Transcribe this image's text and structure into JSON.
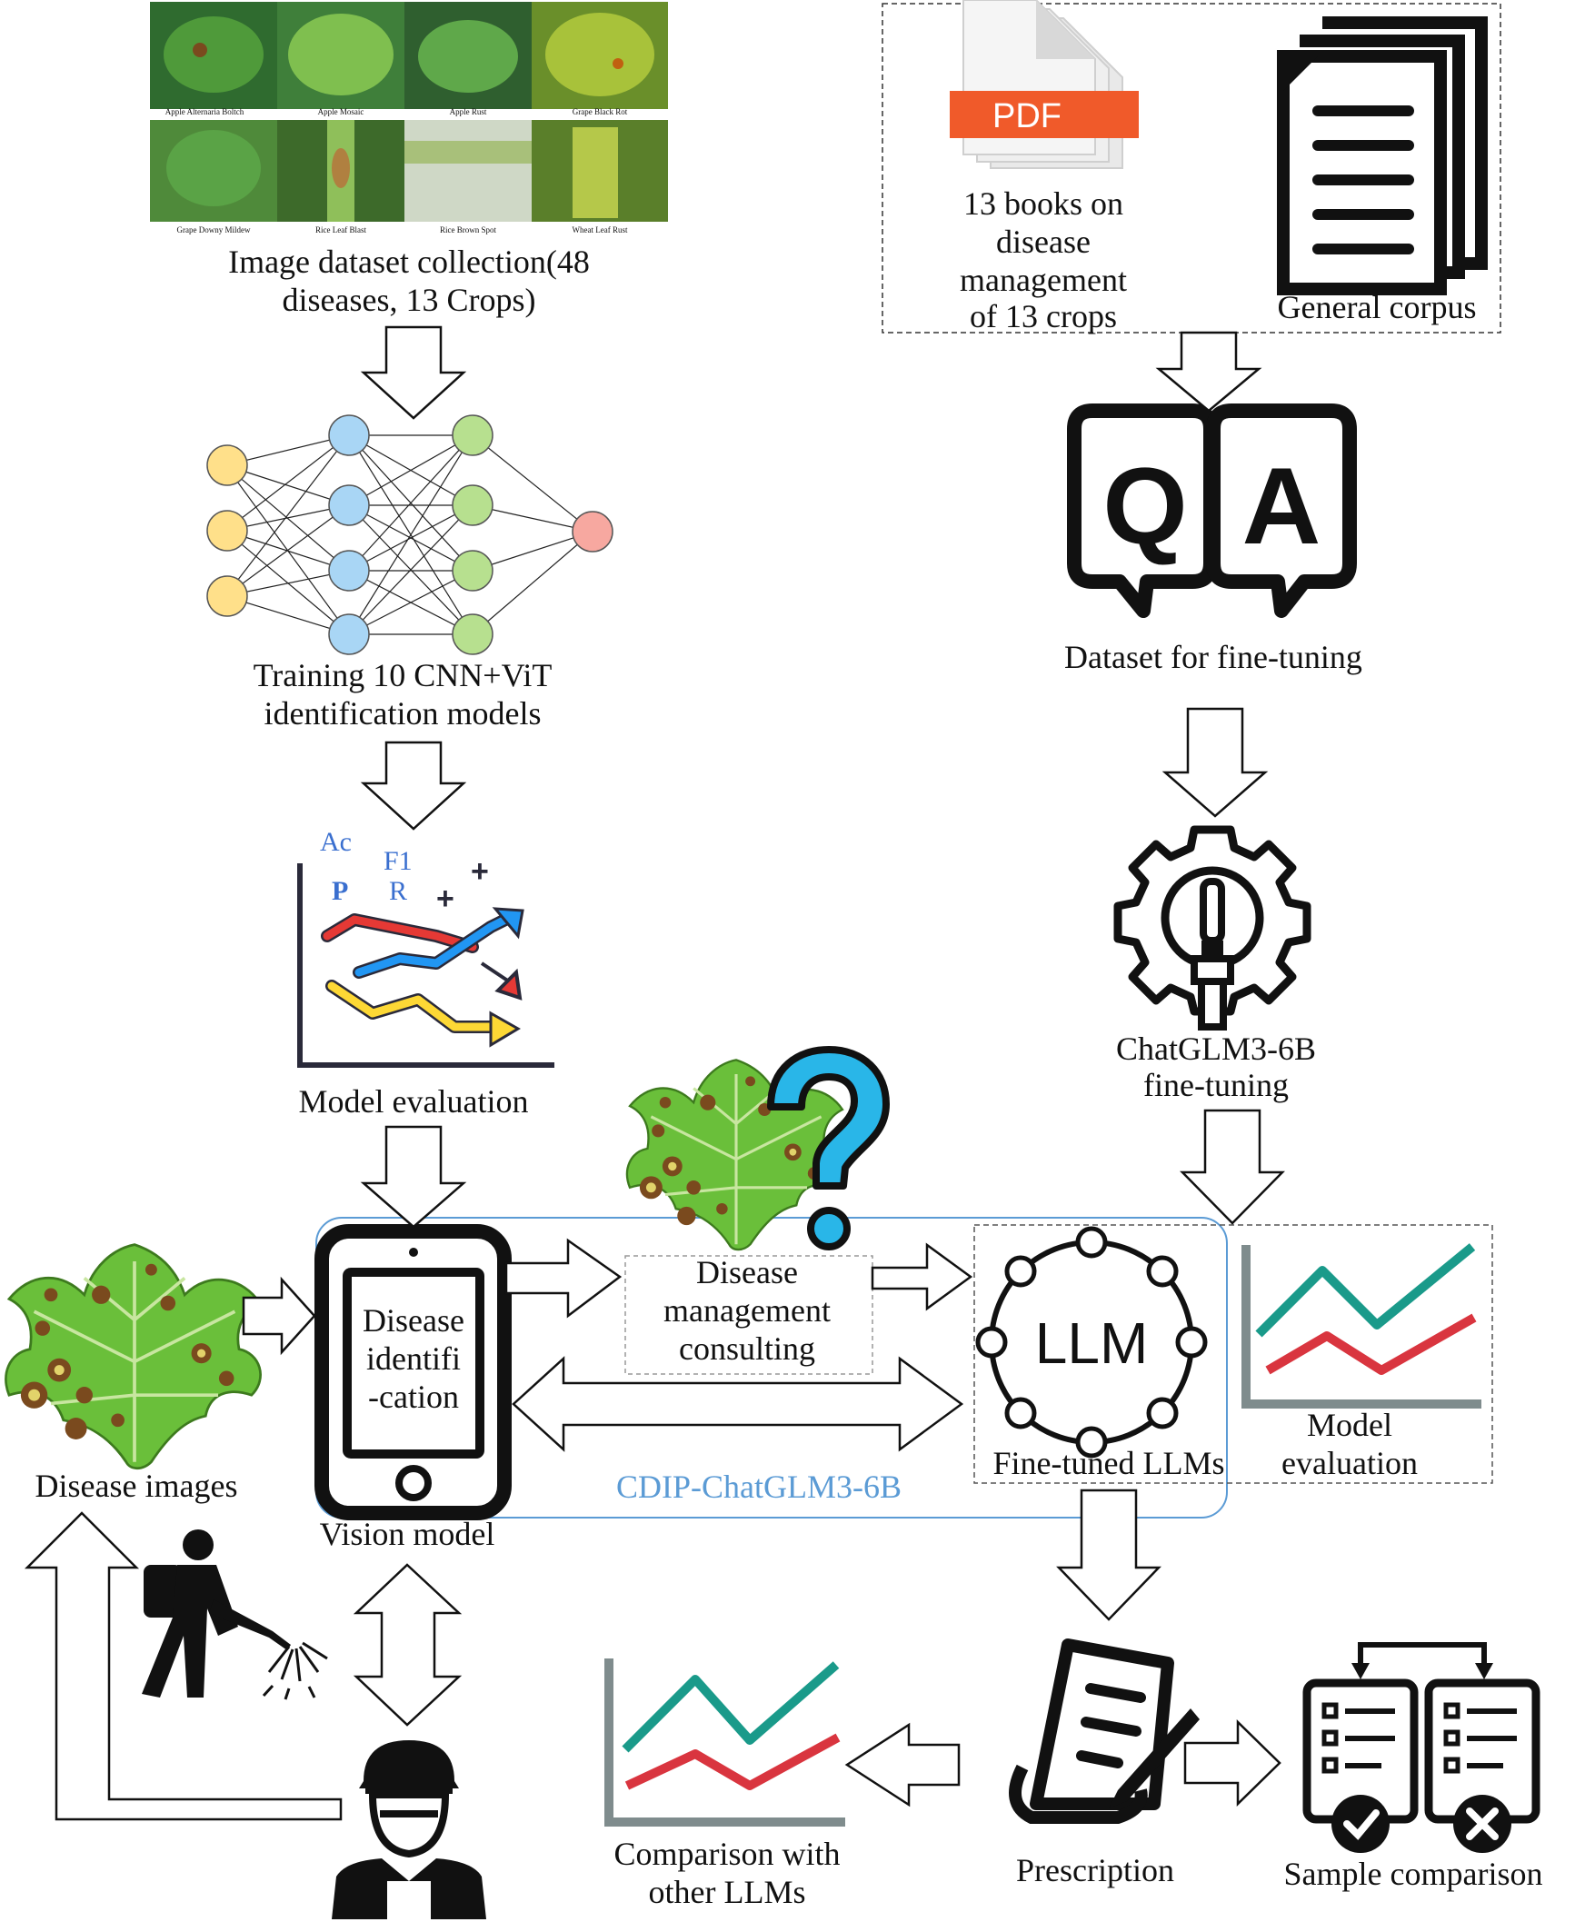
{
  "image_dataset": {
    "thumbnails": [
      {
        "caption": "Apple Alternaria Boltch"
      },
      {
        "caption": "Apple Mosaic"
      },
      {
        "caption": "Apple Rust"
      },
      {
        "caption": "Grape Black Rot"
      },
      {
        "caption": "Grape Downy Mildew"
      },
      {
        "caption": "Rice Leaf Blast"
      },
      {
        "caption": "Rice Brown Spot"
      },
      {
        "caption": "Wheat Leaf Rust"
      }
    ],
    "label_line1": "Image dataset collection(48",
    "label_line2": "diseases, 13 Crops)"
  },
  "training": {
    "label_line1": "Training 10 CNN+ViT",
    "label_line2": "identification models"
  },
  "evaluation_left": {
    "metric_ac": "Ac",
    "metric_f1": "F1",
    "metric_p": "P",
    "metric_r": "R",
    "plus": "+",
    "label": "Model evaluation"
  },
  "books": {
    "pdf_badge": "PDF",
    "label_line1": "13 books on",
    "label_line2": "disease",
    "label_line3": "management",
    "label_line4": "of 13 crops"
  },
  "corpus": {
    "label": "General corpus"
  },
  "qa": {
    "q": "Q",
    "a": "A",
    "label": "Dataset for fine-tuning"
  },
  "finetune": {
    "label_line1": "ChatGLM3-6B",
    "label_line2": "fine-tuning"
  },
  "vision_model": {
    "screen_line1": "Disease",
    "screen_line2": "identifi",
    "screen_line3": "-cation",
    "label": "Vision model"
  },
  "consulting": {
    "line1": "Disease",
    "line2": "management",
    "line3": "consulting"
  },
  "llm": {
    "text": "LLM",
    "label": "Fine-tuned LLMs"
  },
  "system": {
    "label": "CDIP-ChatGLM3-6B"
  },
  "evaluation_right": {
    "label_line1": "Model",
    "label_line2": "evaluation"
  },
  "disease_images": {
    "label": "Disease images"
  },
  "comparison": {
    "label_line1": "Comparison with",
    "label_line2": "other LLMs"
  },
  "prescription": {
    "label": "Prescription"
  },
  "sample": {
    "label": "Sample comparison"
  },
  "colors": {
    "system_border": "#5b9bd5",
    "system_label": "#5b9bd5",
    "teal_line": "#1a9a8a",
    "red_line": "#d9353f",
    "pdf_red": "#f05a2a",
    "node_yellow": "#ffe08a",
    "node_blue": "#a9d6f5",
    "node_green": "#b7e08f",
    "node_red": "#f7a8a0",
    "leaf_green": "#6abf3a",
    "question_blue": "#29b6e8"
  }
}
